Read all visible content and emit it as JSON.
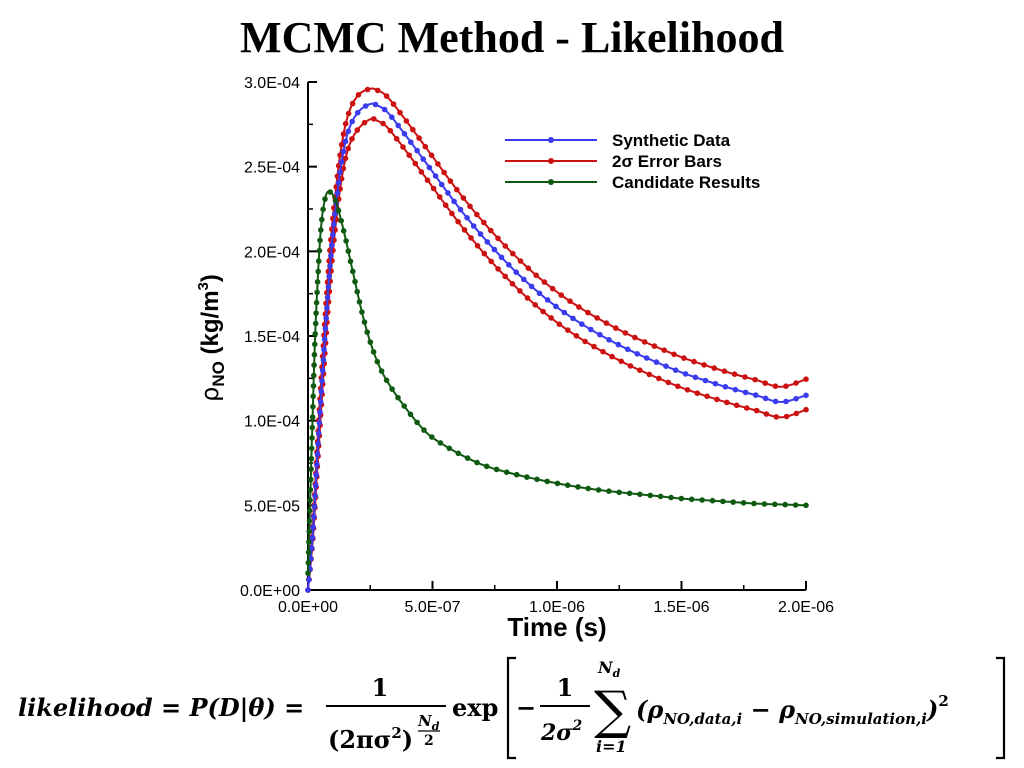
{
  "slide_title": "MCMC Method - Likelihood",
  "colors": {
    "synthetic": "#3a3aee",
    "error_bars": "#cc1111",
    "candidate": "#0f5a10"
  },
  "chart_data": {
    "type": "line",
    "title": "",
    "xlabel": "Time (s)",
    "ylabel_main": "ρ",
    "ylabel_sub": "NO",
    "ylabel_units_pre": " (kg/m",
    "ylabel_units_sup": "3",
    "ylabel_units_post": ")",
    "xlim": [
      0,
      2e-06
    ],
    "ylim": [
      0,
      0.0003
    ],
    "x_ticks": [
      0,
      5e-07,
      1e-06,
      1.5e-06,
      2e-06
    ],
    "x_tick_labels": [
      "0.0E+00",
      "5.0E-07",
      "1.0E-06",
      "1.5E-06",
      "2.0E-06"
    ],
    "y_ticks": [
      0,
      5e-05,
      0.0001,
      0.00015,
      0.0002,
      0.00025,
      0.0003
    ],
    "y_tick_labels": [
      "0.0E+00",
      "5.0E-05",
      "1.0E-04",
      "1.5E-04",
      "2.0E-04",
      "2.5E-04",
      "3.0E-04"
    ],
    "grid": false,
    "legend_position": "top-right",
    "legend": [
      "Synthetic Data",
      "2σ Error Bars",
      "Candidate Results"
    ],
    "series": [
      {
        "name": "Synthetic Data",
        "x": [
          0,
          2e-08,
          4e-08,
          6e-08,
          8e-08,
          1e-07,
          1.3e-07,
          1.6e-07,
          2e-07,
          2.5e-07,
          2.8e-07,
          3.2e-07,
          4e-07,
          5e-07,
          6e-07,
          7e-07,
          8e-07,
          9e-07,
          1e-06,
          1.1e-06,
          1.2e-06,
          1.3e-06,
          1.4e-06,
          1.5e-06,
          1.6e-06,
          1.7e-06,
          1.8e-06,
          1.9e-06,
          2e-06
        ],
        "y": [
          0,
          3.5e-05,
          8.5e-05,
          0.000132,
          0.000175,
          0.00021,
          0.000248,
          0.00027,
          0.000282,
          0.000287,
          0.000286,
          0.000282,
          0.000267,
          0.000247,
          0.000227,
          0.000209,
          0.000193,
          0.000179,
          0.000167,
          0.000157,
          0.0001485,
          0.000141,
          0.0001345,
          0.0001285,
          0.0001235,
          0.000119,
          0.000115,
          0.000111,
          0.000115
        ]
      },
      {
        "name": "2σ Error Bars (upper)",
        "x": [
          0,
          2e-08,
          4e-08,
          6e-08,
          8e-08,
          1e-07,
          1.3e-07,
          1.6e-07,
          2e-07,
          2.5e-07,
          2.8e-07,
          3.2e-07,
          4e-07,
          5e-07,
          6e-07,
          7e-07,
          8e-07,
          9e-07,
          1e-06,
          1.1e-06,
          1.2e-06,
          1.3e-06,
          1.4e-06,
          1.5e-06,
          1.6e-06,
          1.7e-06,
          1.8e-06,
          1.9e-06,
          2e-06
        ],
        "y": [
          0,
          3.9e-05,
          9.2e-05,
          0.000141,
          0.000185,
          0.00022,
          0.000258,
          0.00028,
          0.000292,
          0.000296,
          0.000295,
          0.000291,
          0.000276,
          0.000256,
          0.000236,
          0.000218,
          0.000202,
          0.000188,
          0.000176,
          0.000166,
          0.0001575,
          0.00015,
          0.0001435,
          0.0001375,
          0.0001325,
          0.000128,
          0.000124,
          0.00012,
          0.0001245
        ]
      },
      {
        "name": "2σ Error Bars (lower)",
        "x": [
          0,
          2e-08,
          4e-08,
          6e-08,
          8e-08,
          1e-07,
          1.3e-07,
          1.6e-07,
          2e-07,
          2.5e-07,
          2.8e-07,
          3.2e-07,
          4e-07,
          5e-07,
          6e-07,
          7e-07,
          8e-07,
          9e-07,
          1e-06,
          1.1e-06,
          1.2e-06,
          1.3e-06,
          1.4e-06,
          1.5e-06,
          1.6e-06,
          1.7e-06,
          1.8e-06,
          1.9e-06,
          2e-06
        ],
        "y": [
          0,
          3.1e-05,
          7.8e-05,
          0.000123,
          0.000165,
          0.0002,
          0.000238,
          0.00026,
          0.000272,
          0.000278,
          0.000277,
          0.000273,
          0.000258,
          0.000238,
          0.000218,
          0.0002,
          0.000184,
          0.00017,
          0.000158,
          0.000148,
          0.0001395,
          0.000132,
          0.0001255,
          0.0001195,
          0.0001145,
          0.00011,
          0.000106,
          0.000102,
          0.0001065
        ]
      },
      {
        "name": "Candidate Results",
        "x": [
          0,
          1e-08,
          2e-08,
          3e-08,
          5e-08,
          7e-08,
          9e-08,
          1.1e-07,
          1.3e-07,
          1.5e-07,
          1.8e-07,
          2.2e-07,
          2.6e-07,
          3e-07,
          3.5e-07,
          4e-07,
          4.5e-07,
          5e-07,
          6e-07,
          7e-07,
          8e-07,
          9e-07,
          1e-06,
          1.1e-06,
          1.2e-06,
          1.3e-06,
          1.4e-06,
          1.5e-06,
          1.6e-06,
          1.7e-06,
          1.8e-06,
          1.9e-06,
          2e-06
        ],
        "y": [
          1e-05,
          6e-05,
          0.00011,
          0.000155,
          0.00021,
          0.000232,
          0.000235,
          0.00023,
          0.00022,
          0.000208,
          0.000188,
          0.000162,
          0.000142,
          0.000128,
          0.000116,
          0.000106,
          9.7e-05,
          9e-05,
          8.1e-05,
          7.4e-05,
          6.95e-05,
          6.6e-05,
          6.3e-05,
          6.05e-05,
          5.85e-05,
          5.7e-05,
          5.55e-05,
          5.4e-05,
          5.3e-05,
          5.2e-05,
          5.1e-05,
          5.05e-05,
          5e-05
        ]
      }
    ]
  },
  "equation": {
    "lhs": "likelihood",
    "eq1": " = ",
    "p": "P",
    "args": "(D|θ)",
    "eq2": " = ",
    "num": "1",
    "den_base": "(2πσ",
    "den_sq": "2",
    "den_close": ")",
    "exp_num": "N",
    "exp_sub": "d",
    "exp_den": "2",
    "exp": "exp",
    "minus": "−",
    "frac_num": "1",
    "frac_den_base": "2σ",
    "frac_den_sq": "2",
    "sum_top": "N",
    "sum_top_sub": "d",
    "sum_bottom": "i=1",
    "rho1": "(ρ",
    "rho1_sub": "NO,data,i",
    "minus2": " − ",
    "rho2": "ρ",
    "rho2_sub": "NO,simulation,i",
    "close": ")",
    "sq": "2"
  }
}
